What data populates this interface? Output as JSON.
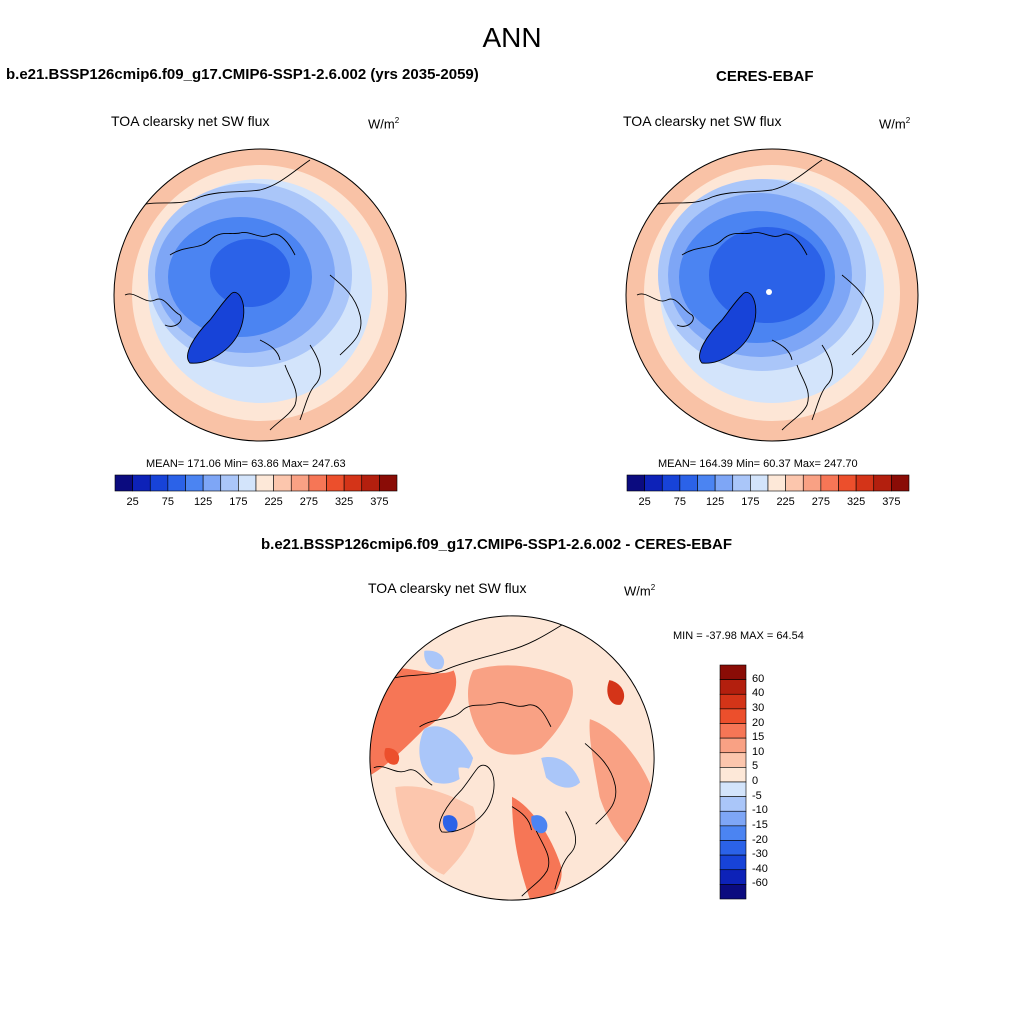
{
  "figure": {
    "title": "ANN"
  },
  "panels": [
    {
      "case": "b.e21.BSSP126cmip6.f09_g17.CMIP6-SSP1-2.6.002 (yrs 2035-2059)",
      "variable": "TOA clearsky net SW flux",
      "units_base": "W/m",
      "units_exp": "2",
      "stats": "MEAN= 171.06  Min=  63.86  Max= 247.63",
      "colorbar": {
        "labels": [
          "25",
          "75",
          "125",
          "175",
          "225",
          "275",
          "325",
          "375"
        ],
        "colors": [
          "#0b0b7f",
          "#0d22b8",
          "#1743d8",
          "#2b62e8",
          "#4b84f2",
          "#7ea6f6",
          "#aac6f9",
          "#d3e4fb",
          "#fde8d8",
          "#fcc6ad",
          "#f9a184",
          "#f67656",
          "#ec4f2c",
          "#d43418",
          "#b31f0e",
          "#8a0c06"
        ]
      }
    },
    {
      "case": "CERES-EBAF",
      "variable": "TOA clearsky net SW flux",
      "units_base": "W/m",
      "units_exp": "2",
      "stats": "MEAN= 164.39  Min=  60.37  Max= 247.70",
      "colorbar": {
        "labels": [
          "25",
          "75",
          "125",
          "175",
          "225",
          "275",
          "325",
          "375"
        ],
        "colors": [
          "#0b0b7f",
          "#0d22b8",
          "#1743d8",
          "#2b62e8",
          "#4b84f2",
          "#7ea6f6",
          "#aac6f9",
          "#d3e4fb",
          "#fde8d8",
          "#fcc6ad",
          "#f9a184",
          "#f67656",
          "#ec4f2c",
          "#d43418",
          "#b31f0e",
          "#8a0c06"
        ]
      }
    },
    {
      "case": "b.e21.BSSP126cmip6.f09_g17.CMIP6-SSP1-2.6.002 - CERES-EBAF",
      "variable": "TOA clearsky net SW flux",
      "units_base": "W/m",
      "units_exp": "2",
      "stats": "MIN = -37.98 MAX =  64.54",
      "colorbar": {
        "labels": [
          "60",
          "40",
          "30",
          "20",
          "15",
          "10",
          "5",
          "0",
          "-5",
          "-10",
          "-15",
          "-20",
          "-30",
          "-40",
          "-60"
        ],
        "colors": [
          "#8a0c06",
          "#b31f0e",
          "#d43418",
          "#ec4f2c",
          "#f67656",
          "#f9a184",
          "#fcc6ad",
          "#fde8d8",
          "#d3e4fb",
          "#aac6f9",
          "#7ea6f6",
          "#4b84f2",
          "#2b62e8",
          "#1743d8",
          "#0d22b8",
          "#0b0b7f"
        ]
      }
    }
  ]
}
